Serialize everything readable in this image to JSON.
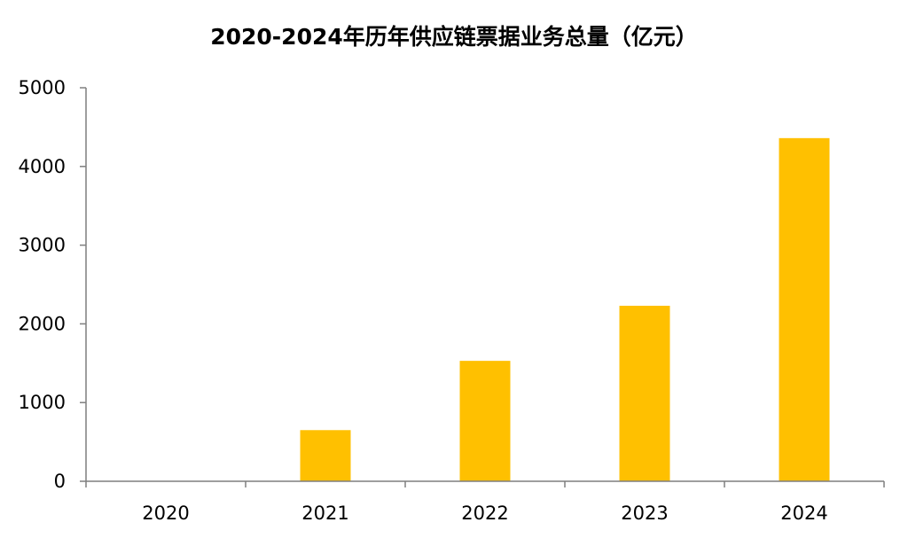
{
  "chart_data": {
    "type": "bar",
    "title": "2020-2024年历年供应链票据业务总量（亿元）",
    "categories": [
      "2020",
      "2021",
      "2022",
      "2023",
      "2024"
    ],
    "values": [
      0,
      650,
      1530,
      2230,
      4360
    ],
    "yticks": [
      "0",
      "1000",
      "2000",
      "3000",
      "4000",
      "5000"
    ],
    "ylim": [
      0,
      5000
    ],
    "xlabel": "",
    "ylabel": "",
    "grid": false,
    "bar_color": "#FFC000",
    "axis_color": "#7f7f7f"
  }
}
